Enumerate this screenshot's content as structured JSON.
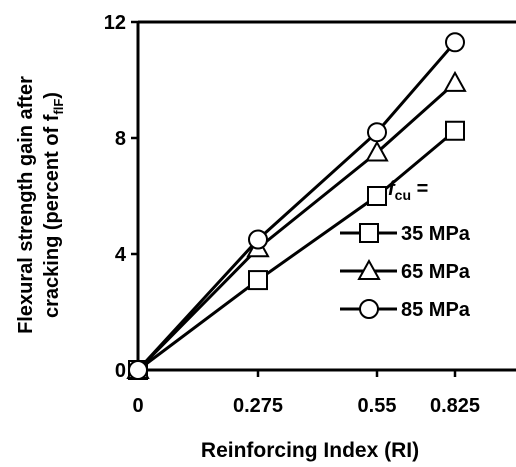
{
  "chart_data": {
    "type": "line",
    "xlabel": "Reinforcing Index (RI)",
    "ylabel_line1": "Flexural strength gain after",
    "ylabel_line2_prefix": "cracking (percent of f",
    "ylabel_line2_sub": "flF",
    "ylabel_line2_suffix": ")",
    "x": [
      0,
      0.275,
      0.55,
      0.825
    ],
    "x_tick_labels": [
      "0",
      "0.275",
      "0.55",
      "0.825"
    ],
    "y_ticks": [
      0,
      4,
      8,
      12
    ],
    "y_tick_labels": [
      "0",
      "4",
      "8",
      "12"
    ],
    "ylim": [
      0,
      12
    ],
    "legend_title_prefix": "f",
    "legend_title_sub": "cu",
    "legend_title_suffix": " =",
    "legend_position": "right",
    "grid": false,
    "series": [
      {
        "name": "35 MPa",
        "marker": "square",
        "values": [
          0,
          3.1,
          6.0,
          8.25
        ]
      },
      {
        "name": "65 MPa",
        "marker": "triangle",
        "values": [
          0,
          4.2,
          7.5,
          9.9
        ]
      },
      {
        "name": "85 MPa",
        "marker": "circle",
        "values": [
          0,
          4.5,
          8.2,
          11.3
        ]
      }
    ]
  }
}
